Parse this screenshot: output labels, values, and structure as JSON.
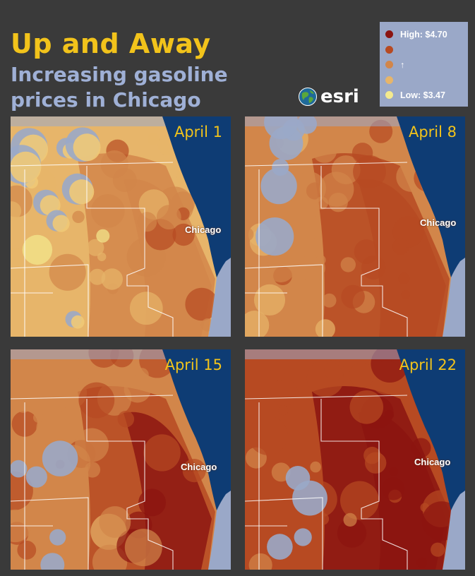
{
  "title": "Up and Away",
  "subtitle": "Increasing gasoline prices in Chicago",
  "logo_text": "esri",
  "legend": [
    {
      "label": "High: $4.70",
      "color": "#8b1410"
    },
    {
      "label": "",
      "color": "#b74a22"
    },
    {
      "label": "↑",
      "color": "#d2864a"
    },
    {
      "label": "",
      "color": "#e7b56a"
    },
    {
      "label": "Low: $3.47",
      "color": "#f4ea8e"
    }
  ],
  "panels": [
    {
      "date": "April 1",
      "city": "Chicago",
      "intensity": 0.15
    },
    {
      "date": "April 8",
      "city": "Chicago",
      "intensity": 0.45
    },
    {
      "date": "April 15",
      "city": "Chicago",
      "intensity": 0.7
    },
    {
      "date": "April 22",
      "city": "Chicago",
      "intensity": 0.9
    }
  ],
  "colors": {
    "lake": "#0e3c74",
    "background": "#3a3a3a",
    "no_data": "#9aa8c8",
    "title": "#f2c31b",
    "subtitle": "#9fb0d6"
  }
}
